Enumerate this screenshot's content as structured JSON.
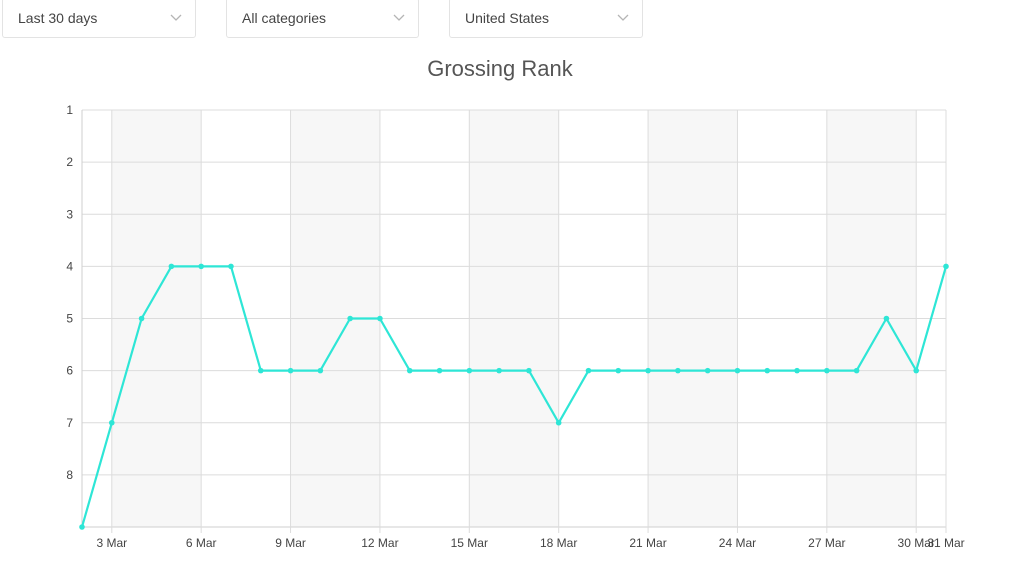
{
  "filters": {
    "period": "Last 30 days",
    "category": "All categories",
    "country": "United States"
  },
  "icons": {
    "dropdown": "chevron-down-icon"
  },
  "colors": {
    "line": "#2ee6d6",
    "band": "#f7f7f7",
    "grid": "#dcdcdc"
  },
  "chart_data": {
    "type": "line",
    "title": "Grossing Rank",
    "xlabel": "",
    "ylabel": "",
    "y_inverted": true,
    "ylim": [
      1,
      9
    ],
    "y_ticks": [
      "1",
      "2",
      "3",
      "4",
      "5",
      "6",
      "7",
      "8"
    ],
    "x_ticks": [
      "3 Mar",
      "6 Mar",
      "9 Mar",
      "12 Mar",
      "15 Mar",
      "18 Mar",
      "21 Mar",
      "24 Mar",
      "27 Mar",
      "30 Mar",
      "31 Mar"
    ],
    "grid": true,
    "legend": "none",
    "series": [
      {
        "x": [
          "2 Mar",
          "3 Mar",
          "4 Mar",
          "5 Mar",
          "6 Mar",
          "7 Mar",
          "8 Mar",
          "9 Mar",
          "10 Mar",
          "11 Mar",
          "12 Mar",
          "13 Mar",
          "14 Mar",
          "15 Mar",
          "16 Mar",
          "17 Mar",
          "18 Mar",
          "19 Mar",
          "20 Mar",
          "21 Mar",
          "22 Mar",
          "23 Mar",
          "24 Mar",
          "25 Mar",
          "26 Mar",
          "27 Mar",
          "28 Mar",
          "29 Mar",
          "30 Mar",
          "31 Mar"
        ],
        "values": [
          9,
          7,
          5,
          4,
          4,
          4,
          6,
          6,
          6,
          5,
          5,
          6,
          6,
          6,
          6,
          6,
          7,
          6,
          6,
          6,
          6,
          6,
          6,
          6,
          6,
          6,
          6,
          5,
          6,
          4
        ]
      }
    ]
  }
}
